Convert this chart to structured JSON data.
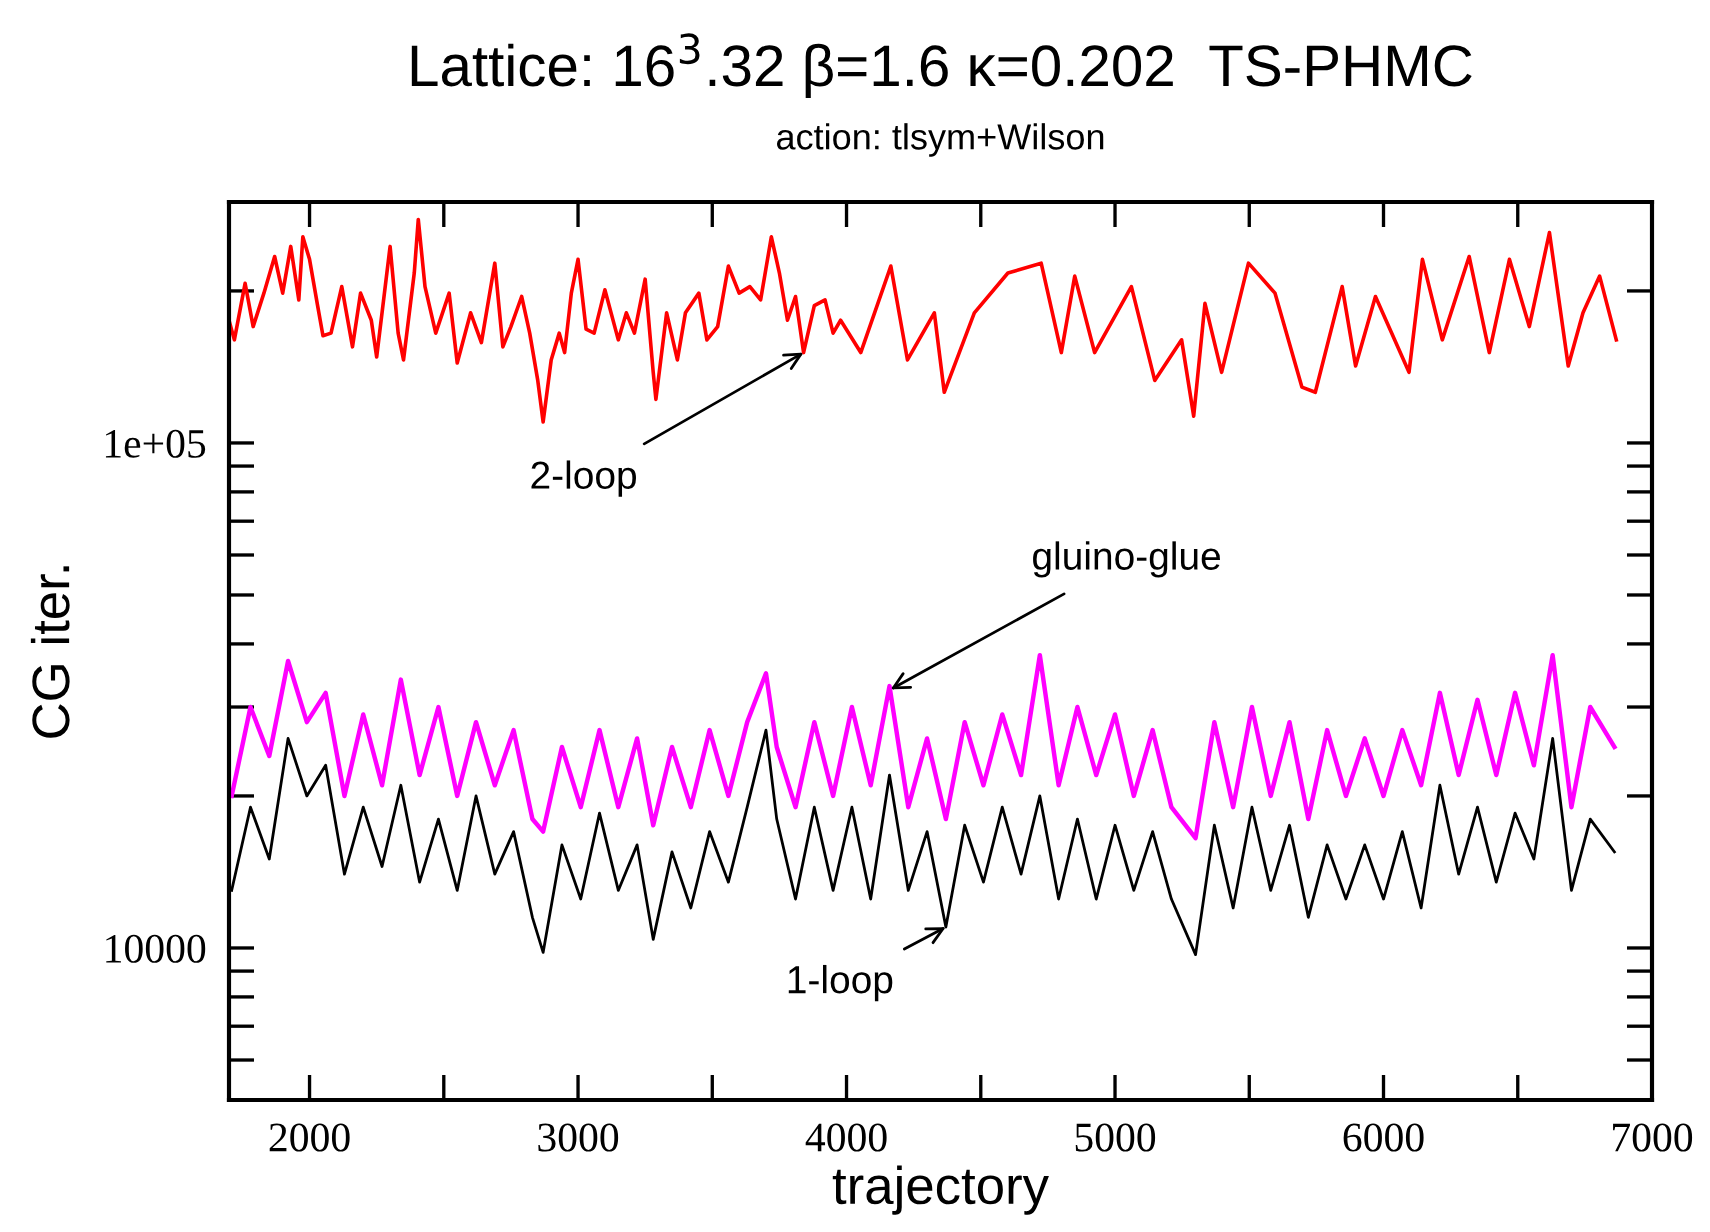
{
  "chart_data": {
    "type": "line",
    "title": "Lattice: 16$^{3}$.32 β=1.6 κ=0.202  TS-PHMC",
    "subtitle": "action: tlsym+Wilson",
    "xlabel": "trajectory",
    "ylabel": "CG iter.",
    "log": "y",
    "grid": false,
    "legend": false,
    "marker": "none",
    "line_style": "solid",
    "xlim": [
      1700,
      7000
    ],
    "ylim": [
      5000,
      300000
    ],
    "xticks": [
      2000,
      {
        "value": 2500,
        "label": null
      },
      3000,
      {
        "value": 3500,
        "label": null
      },
      4000,
      {
        "value": 4500,
        "label": null
      },
      5000,
      {
        "value": 5500,
        "label": null
      },
      6000,
      {
        "value": 6500,
        "label": null
      },
      7000
    ],
    "yticks": [
      {
        "value": 6000,
        "label": null
      },
      {
        "value": 7000,
        "label": null
      },
      {
        "value": 8000,
        "label": null
      },
      {
        "value": 9000,
        "label": null
      },
      10000,
      {
        "value": 20000,
        "label": null
      },
      {
        "value": 30000,
        "label": null
      },
      {
        "value": 40000,
        "label": null
      },
      {
        "value": 50000,
        "label": null
      },
      {
        "value": 60000,
        "label": null
      },
      {
        "value": 70000,
        "label": null
      },
      {
        "value": 80000,
        "label": null
      },
      {
        "value": 90000,
        "label": null
      },
      {
        "value": 100000,
        "label": "1e+05"
      },
      {
        "value": 200000,
        "label": null
      }
    ],
    "series": [
      {
        "color": "#ff0000",
        "x": [
          1700,
          1720,
          1760,
          1790,
          1830,
          1870,
          1900,
          1930,
          1960,
          1975,
          2000,
          2030,
          2050,
          2080,
          2120,
          2160,
          2190,
          2230,
          2250,
          2300,
          2330,
          2350,
          2390,
          2405,
          2430,
          2470,
          2520,
          2550,
          2600,
          2640,
          2690,
          2720,
          2750,
          2790,
          2820,
          2850,
          2870,
          2900,
          2930,
          2950,
          2975,
          3000,
          3030,
          3060,
          3100,
          3150,
          3180,
          3210,
          3250,
          3280,
          3290,
          3330,
          3370,
          3400,
          3450,
          3480,
          3520,
          3560,
          3600,
          3640,
          3680,
          3720,
          3750,
          3780,
          3810,
          3840,
          3880,
          3920,
          3950,
          3978,
          4053,
          4165,
          4227,
          4327,
          4364,
          4476,
          4601,
          4725,
          4800,
          4850,
          4924,
          5061,
          5148,
          5248,
          5293,
          5335,
          5397,
          5497,
          5596,
          5696,
          5746,
          5846,
          5896,
          5970,
          6095,
          6145,
          6219,
          6319,
          6394,
          6469,
          6543,
          6618,
          6688,
          6743,
          6805,
          6867
        ],
        "values": [
          175000,
          160000,
          207000,
          170000,
          198000,
          234000,
          198000,
          245000,
          192000,
          256000,
          231000,
          187000,
          163000,
          165000,
          204000,
          155000,
          198000,
          175000,
          148000,
          245000,
          165000,
          146000,
          217000,
          277000,
          204000,
          165000,
          198000,
          144000,
          181000,
          158000,
          227000,
          155000,
          170000,
          195000,
          165000,
          133000,
          110000,
          146000,
          165000,
          151000,
          198000,
          231000,
          168000,
          165000,
          201000,
          160000,
          181000,
          165000,
          211000,
          138000,
          122000,
          181000,
          146000,
          181000,
          198000,
          160000,
          170000,
          224000,
          198000,
          204000,
          192000,
          256000,
          217000,
          175000,
          195000,
          151000,
          187000,
          192000,
          165000,
          175000,
          151000,
          224000,
          146000,
          181000,
          126000,
          181000,
          217000,
          227000,
          151000,
          214000,
          151000,
          204000,
          133000,
          160000,
          113000,
          189000,
          138000,
          227000,
          198000,
          129000,
          126000,
          204000,
          142000,
          195000,
          138000,
          231000,
          160000,
          234000,
          151000,
          231000,
          170000,
          261000,
          142000,
          181000,
          214000,
          160000
        ]
      },
      {
        "color": "#ff00ff",
        "x": [
          1710,
          1780,
          1850,
          1920,
          1990,
          2060,
          2130,
          2200,
          2270,
          2340,
          2410,
          2480,
          2550,
          2620,
          2690,
          2760,
          2830,
          2870,
          2940,
          3010,
          3080,
          3150,
          3220,
          3280,
          3350,
          3420,
          3490,
          3560,
          3630,
          3700,
          3740,
          3810,
          3880,
          3950,
          4020,
          4090,
          4160,
          4230,
          4300,
          4370,
          4440,
          4510,
          4580,
          4650,
          4720,
          4790,
          4860,
          4930,
          5000,
          5070,
          5140,
          5210,
          5300,
          5370,
          5440,
          5510,
          5580,
          5650,
          5720,
          5790,
          5860,
          5930,
          6000,
          6070,
          6140,
          6210,
          6280,
          6350,
          6420,
          6490,
          6560,
          6630,
          6700,
          6770,
          6860
        ],
        "values": [
          20000,
          30000,
          24000,
          37000,
          28000,
          32000,
          20000,
          29000,
          21000,
          34000,
          22000,
          30000,
          20000,
          28000,
          21000,
          27000,
          18000,
          17000,
          25000,
          19000,
          27000,
          19000,
          26000,
          17500,
          25000,
          19000,
          27000,
          20000,
          28000,
          35000,
          25000,
          19000,
          28000,
          20000,
          30000,
          21000,
          33000,
          19000,
          26000,
          18000,
          28000,
          21000,
          29000,
          22000,
          38000,
          21000,
          30000,
          22000,
          29000,
          20000,
          27000,
          19000,
          16500,
          28000,
          19000,
          30000,
          20000,
          28000,
          18000,
          27000,
          20000,
          26000,
          20000,
          27000,
          21000,
          32000,
          22000,
          31000,
          22000,
          32000,
          23000,
          38000,
          19000,
          30000,
          25000
        ]
      },
      {
        "color": "#000000",
        "x": [
          1710,
          1780,
          1850,
          1920,
          1990,
          2060,
          2130,
          2200,
          2270,
          2340,
          2410,
          2480,
          2550,
          2620,
          2690,
          2760,
          2830,
          2870,
          2940,
          3010,
          3080,
          3150,
          3220,
          3280,
          3350,
          3420,
          3490,
          3560,
          3630,
          3700,
          3740,
          3810,
          3880,
          3950,
          4020,
          4090,
          4160,
          4230,
          4300,
          4370,
          4440,
          4510,
          4580,
          4650,
          4720,
          4790,
          4860,
          4930,
          5000,
          5070,
          5140,
          5210,
          5300,
          5370,
          5440,
          5510,
          5580,
          5650,
          5720,
          5790,
          5860,
          5930,
          6000,
          6070,
          6140,
          6210,
          6280,
          6350,
          6420,
          6490,
          6560,
          6630,
          6700,
          6770,
          6860
        ],
        "values": [
          13000,
          19000,
          15000,
          26000,
          20000,
          23000,
          14000,
          19000,
          14500,
          21000,
          13500,
          18000,
          13000,
          20000,
          14000,
          17000,
          11500,
          9800,
          16000,
          12500,
          18500,
          13000,
          16000,
          10400,
          15500,
          12000,
          17000,
          13500,
          19000,
          27000,
          18000,
          12500,
          19000,
          13000,
          19000,
          12500,
          22000,
          13000,
          17000,
          11000,
          17500,
          13500,
          19000,
          14000,
          20000,
          12500,
          18000,
          12500,
          17500,
          13000,
          17000,
          12500,
          9700,
          17500,
          12000,
          19000,
          13000,
          17500,
          11500,
          16000,
          12500,
          16000,
          12500,
          17000,
          12000,
          21000,
          14000,
          19000,
          13500,
          18500,
          15000,
          26000,
          13000,
          18000,
          15500
        ]
      }
    ],
    "annotations": [
      {
        "text": "2-loop",
        "x": 3840,
        "y": 151000
      },
      {
        "text": "gluino-glue",
        "x": 4164,
        "y": 32500
      },
      {
        "text": "1-loop",
        "x": 4370,
        "y": 11000
      }
    ]
  }
}
